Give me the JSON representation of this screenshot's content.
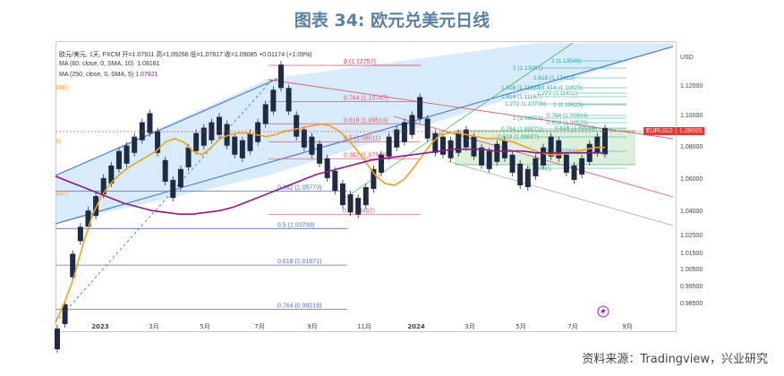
{
  "figure_title": "图表 34: 欧元兑美元日线",
  "source": "资料来源：Tradingview，兴业研究",
  "legend": {
    "line1": "欧元/美元, 1天, FXCM  开=1.07911  高=1.09266  低=1.07817  收=1.09085  +0.01174 (+1.09%)",
    "line2_label": "MA (60, close, 0, SMA, 10)",
    "line2_value": "1.08161",
    "line3_label": "MA (250, close, 0, SMA, 5)",
    "line3_value": "1.07921"
  },
  "price_tag_left": "EURUSD",
  "price_tag_right": "1.09085",
  "left_edge_labels": [
    "880)",
    "8)",
    "257)"
  ],
  "lightning_icon": "lightning-icon",
  "colors": {
    "candle": "#1f2a44",
    "ma60": "#f0a020",
    "ma250": "#8b1a8b",
    "fib_blue": "#5a6fc0",
    "fib_red": "#e05a6a",
    "fib_teal": "#26a69a",
    "channel_fill": "#b8daf5",
    "box_fill": "#cfe9cf",
    "price_tag": "#e53935",
    "lightning": "#9c27b0"
  },
  "chart_data": {
    "type": "line",
    "title": "图表 34: 欧元兑美元日线",
    "y_axis_label": "USD",
    "ylim": [
      0.98,
      1.14
    ],
    "y_ticks": [
      "1.12000",
      "1.10000",
      "1.08000",
      "1.06000",
      "1.04000",
      "1.02500",
      "1.01500",
      "1.00500",
      "0.99500",
      "0.98500"
    ],
    "x_ticks": [
      "2023",
      "3月",
      "5月",
      "7月",
      "9月",
      "11月",
      "2024",
      "3月",
      "5月",
      "7月",
      "9月"
    ],
    "series": [
      {
        "name": "欧元/美元",
        "values": [
          [
            0.9815,
            0.97
          ],
          [
            0.995,
            0.984
          ],
          [
            1.023,
            1.01
          ],
          [
            1.038,
            1.03
          ],
          [
            1.047,
            1.038
          ],
          [
            1.055,
            1.044
          ],
          [
            1.065,
            1.056
          ],
          [
            1.072,
            1.062
          ],
          [
            1.08,
            1.07
          ],
          [
            1.083,
            1.073
          ],
          [
            1.088,
            1.079
          ],
          [
            1.096,
            1.086
          ],
          [
            1.101,
            1.09
          ],
          [
            1.091,
            1.079
          ],
          [
            1.075,
            1.063
          ],
          [
            1.064,
            1.054
          ],
          [
            1.07,
            1.06
          ],
          [
            1.082,
            1.071
          ],
          [
            1.09,
            1.08
          ],
          [
            1.093,
            1.083
          ],
          [
            1.096,
            1.086
          ],
          [
            1.099,
            1.089
          ],
          [
            1.095,
            1.083
          ],
          [
            1.088,
            1.078
          ],
          [
            1.086,
            1.076
          ],
          [
            1.09,
            1.08
          ],
          [
            1.096,
            1.085
          ],
          [
            1.106,
            1.095
          ],
          [
            1.114,
            1.102
          ],
          [
            1.128,
            1.115
          ],
          [
            1.115,
            1.102
          ],
          [
            1.1,
            1.088
          ],
          [
            1.092,
            1.082
          ],
          [
            1.088,
            1.078
          ],
          [
            1.084,
            1.073
          ],
          [
            1.076,
            1.065
          ],
          [
            1.069,
            1.058
          ],
          [
            1.062,
            1.05
          ],
          [
            1.056,
            1.046
          ],
          [
            1.054,
            1.0448
          ],
          [
            1.06,
            1.05
          ],
          [
            1.07,
            1.059
          ],
          [
            1.078,
            1.068
          ],
          [
            1.088,
            1.077
          ],
          [
            1.092,
            1.082
          ],
          [
            1.096,
            1.085
          ],
          [
            1.1,
            1.089
          ],
          [
            1.11,
            1.098
          ],
          [
            1.098,
            1.087
          ],
          [
            1.09,
            1.079
          ],
          [
            1.088,
            1.078
          ],
          [
            1.086,
            1.076
          ],
          [
            1.09,
            1.079
          ],
          [
            1.092,
            1.082
          ],
          [
            1.088,
            1.077
          ],
          [
            1.082,
            1.072
          ],
          [
            1.08,
            1.07
          ],
          [
            1.084,
            1.074
          ],
          [
            1.086,
            1.076
          ],
          [
            1.078,
            1.068
          ],
          [
            1.073,
            1.061
          ],
          [
            1.07,
            1.06
          ],
          [
            1.076,
            1.066
          ],
          [
            1.082,
            1.072
          ],
          [
            1.088,
            1.077
          ],
          [
            1.086,
            1.076
          ],
          [
            1.078,
            1.068
          ],
          [
            1.072,
            1.064
          ],
          [
            1.076,
            1.067
          ],
          [
            1.084,
            1.074
          ],
          [
            1.088,
            1.079
          ],
          [
            1.0927,
            1.0782
          ]
        ]
      },
      {
        "name": "MA (60, close, 0, SMA, 10)",
        "values": [
          0.985,
          0.996,
          1.01,
          1.028,
          1.044,
          1.055,
          1.062,
          1.067,
          1.071,
          1.074,
          1.077,
          1.08,
          1.085,
          1.087,
          1.085,
          1.08,
          1.078,
          1.082,
          1.087,
          1.089,
          1.09,
          1.09,
          1.089,
          1.088,
          1.089,
          1.091,
          1.092,
          1.093,
          1.094,
          1.095,
          1.094,
          1.091,
          1.086,
          1.08,
          1.073,
          1.066,
          1.062,
          1.061,
          1.064,
          1.07,
          1.077,
          1.084,
          1.089,
          1.09,
          1.09,
          1.089,
          1.088,
          1.087,
          1.087,
          1.086,
          1.085,
          1.083,
          1.081,
          1.079,
          1.078,
          1.078,
          1.079,
          1.08,
          1.081,
          1.082,
          1.082
        ]
      },
      {
        "name": "MA (250, close, 0, SMA, 5)",
        "values": [
          1.066,
          1.063,
          1.06,
          1.057,
          1.054,
          1.051,
          1.049,
          1.047,
          1.046,
          1.045,
          1.045,
          1.046,
          1.047,
          1.049,
          1.052,
          1.055,
          1.058,
          1.061,
          1.064,
          1.067,
          1.069,
          1.071,
          1.073,
          1.075,
          1.076,
          1.077,
          1.078,
          1.079,
          1.08,
          1.081,
          1.081,
          1.081,
          1.08,
          1.08,
          1.08,
          1.079,
          1.079,
          1.079,
          1.079,
          1.079,
          1.079
        ]
      }
    ],
    "fib_left_blue": [
      {
        "label": "0.382 (1.05770)",
        "value": 1.0577
      },
      {
        "label": "0.5 (1.03700)",
        "value": 1.037
      },
      {
        "label": "0.618 (1.01671)",
        "value": 1.01671
      },
      {
        "label": "0.764 (0.99216)",
        "value": 0.99216
      }
    ],
    "fib_mid_red": [
      {
        "label": "0 (1.12757)",
        "value": 1.12757
      },
      {
        "label": "1 (1.12757)",
        "value": 1.12757
      },
      {
        "label": "0.764 (1.10747)",
        "value": 1.10747
      },
      {
        "label": "0.618 (1.09514)",
        "value": 1.09514
      },
      {
        "label": "0.5 (1.08511)",
        "value": 1.08511
      },
      {
        "label": "0.382 (1.07569)",
        "value": 1.07569
      },
      {
        "label": "0 (1.04482)",
        "value": 1.04482
      }
    ],
    "fib_right_teal": [
      {
        "label": "2 (1.13548)"
      },
      {
        "label": "2 (1.13091)"
      },
      {
        "label": "1.618 (1.12422)"
      },
      {
        "label": "1.618 (1.11833)1.414 (1.11825)"
      },
      {
        "label": "1.272 (1.11411)"
      },
      {
        "label": "1.414 (1.11167)"
      },
      {
        "label": "1 (1.10623)"
      },
      {
        "label": "1.272 (1.10706)"
      },
      {
        "label": "0.764 (1.09944)"
      },
      {
        "label": "1 (1.09803)"
      },
      {
        "label": "0.618 (1.09526)"
      },
      {
        "label": "0.764 (1.09072)"
      },
      {
        "label": "0.618 (1.09189)"
      },
      {
        "label": "0.618 (1.08887)"
      },
      {
        "label": "0.5 (1.07823)"
      },
      {
        "label": "(1.06660)"
      }
    ],
    "last_price": 1.09085
  }
}
